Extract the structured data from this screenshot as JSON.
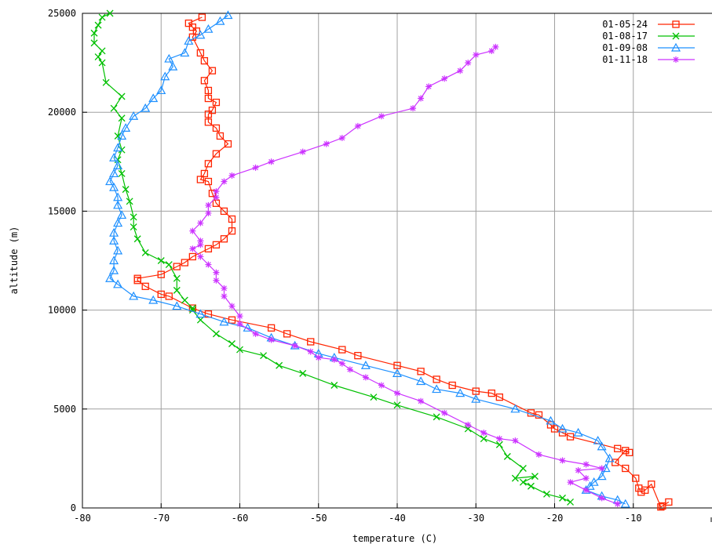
{
  "chart_data": {
    "type": "line",
    "title": "",
    "xlabel": "temperature (C)",
    "ylabel": "altitude (m)",
    "xlim": [
      -80,
      0
    ],
    "ylim": [
      0,
      25000
    ],
    "x_ticks": [
      "-80",
      "-70",
      "-60",
      "-50",
      "-40",
      "-30",
      "-20",
      "-10"
    ],
    "y_ticks": [
      "0",
      "5000",
      "10000",
      "15000",
      "20000",
      "25000"
    ],
    "grid": true,
    "legend_position": "top-right",
    "series": [
      {
        "name": "01-05-24",
        "color": "#ff2400",
        "marker": "square",
        "points": [
          [
            -5.5,
            300
          ],
          [
            -6.3,
            100
          ],
          [
            -6.5,
            50
          ],
          [
            -7.7,
            1200
          ],
          [
            -8.5,
            900
          ],
          [
            -9,
            800
          ],
          [
            -9.3,
            1000
          ],
          [
            -9.7,
            1500
          ],
          [
            -11,
            2000
          ],
          [
            -12.3,
            2300
          ],
          [
            -11,
            2900
          ],
          [
            -10.5,
            2800
          ],
          [
            -12,
            3000
          ],
          [
            -18,
            3600
          ],
          [
            -19,
            3800
          ],
          [
            -20,
            4000
          ],
          [
            -20.5,
            4200
          ],
          [
            -22,
            4700
          ],
          [
            -23,
            4800
          ],
          [
            -27,
            5600
          ],
          [
            -28,
            5800
          ],
          [
            -30,
            5900
          ],
          [
            -33,
            6200
          ],
          [
            -35,
            6500
          ],
          [
            -37,
            6900
          ],
          [
            -40,
            7200
          ],
          [
            -45,
            7700
          ],
          [
            -47,
            8000
          ],
          [
            -51,
            8400
          ],
          [
            -54,
            8800
          ],
          [
            -56,
            9100
          ],
          [
            -61,
            9500
          ],
          [
            -64,
            9800
          ],
          [
            -66,
            10100
          ],
          [
            -69,
            10700
          ],
          [
            -70,
            10800
          ],
          [
            -72,
            11200
          ],
          [
            -73,
            11500
          ],
          [
            -73,
            11600
          ],
          [
            -70,
            11800
          ],
          [
            -68,
            12200
          ],
          [
            -67,
            12400
          ],
          [
            -66,
            12700
          ],
          [
            -64,
            13100
          ],
          [
            -63,
            13300
          ],
          [
            -62,
            13600
          ],
          [
            -61,
            14000
          ],
          [
            -61,
            14600
          ],
          [
            -62,
            15000
          ],
          [
            -63,
            15400
          ],
          [
            -63.5,
            15900
          ],
          [
            -64,
            16500
          ],
          [
            -65,
            16600
          ],
          [
            -64.5,
            16900
          ],
          [
            -64,
            17400
          ],
          [
            -63,
            17900
          ],
          [
            -61.5,
            18400
          ],
          [
            -62.5,
            18800
          ],
          [
            -63,
            19200
          ],
          [
            -64,
            19500
          ],
          [
            -64,
            19900
          ],
          [
            -63.5,
            20100
          ],
          [
            -63,
            20500
          ],
          [
            -64,
            20700
          ],
          [
            -64,
            21100
          ],
          [
            -64.5,
            21600
          ],
          [
            -63.5,
            22100
          ],
          [
            -64.5,
            22600
          ],
          [
            -65,
            23000
          ],
          [
            -66,
            23800
          ],
          [
            -65.5,
            24100
          ],
          [
            -66,
            24300
          ],
          [
            -66.5,
            24500
          ],
          [
            -64.8,
            24800
          ]
        ]
      },
      {
        "name": "01-08-17",
        "color": "#00c000",
        "marker": "cross",
        "points": [
          [
            -18,
            300
          ],
          [
            -19,
            500
          ],
          [
            -21,
            700
          ],
          [
            -23,
            1100
          ],
          [
            -24,
            1300
          ],
          [
            -22.5,
            1600
          ],
          [
            -25,
            1500
          ],
          [
            -24,
            2000
          ],
          [
            -26,
            2600
          ],
          [
            -27,
            3200
          ],
          [
            -29,
            3500
          ],
          [
            -31,
            4000
          ],
          [
            -35,
            4600
          ],
          [
            -40,
            5200
          ],
          [
            -43,
            5600
          ],
          [
            -48,
            6200
          ],
          [
            -52,
            6800
          ],
          [
            -55,
            7200
          ],
          [
            -57,
            7700
          ],
          [
            -60,
            8000
          ],
          [
            -61,
            8300
          ],
          [
            -63,
            8800
          ],
          [
            -65,
            9500
          ],
          [
            -66,
            10000
          ],
          [
            -66,
            10100
          ],
          [
            -67,
            10500
          ],
          [
            -68,
            11000
          ],
          [
            -68,
            11600
          ],
          [
            -69,
            12300
          ],
          [
            -70,
            12500
          ],
          [
            -72,
            12900
          ],
          [
            -73,
            13600
          ],
          [
            -73.5,
            14200
          ],
          [
            -73.5,
            14700
          ],
          [
            -74,
            15500
          ],
          [
            -74.5,
            16100
          ],
          [
            -75,
            16900
          ],
          [
            -75.5,
            17600
          ],
          [
            -75,
            18100
          ],
          [
            -75.5,
            18800
          ],
          [
            -75,
            19700
          ],
          [
            -76,
            20200
          ],
          [
            -75,
            20800
          ],
          [
            -77,
            21500
          ],
          [
            -77.5,
            22500
          ],
          [
            -78,
            22800
          ],
          [
            -77.5,
            23100
          ],
          [
            -78.5,
            23500
          ],
          [
            -78.5,
            24000
          ],
          [
            -78,
            24400
          ],
          [
            -77.5,
            24800
          ],
          [
            -76.5,
            25000
          ]
        ]
      },
      {
        "name": "01-09-08",
        "color": "#1e90ff",
        "marker": "triangle",
        "points": [
          [
            -11,
            200
          ],
          [
            -12,
            400
          ],
          [
            -14,
            600
          ],
          [
            -16,
            900
          ],
          [
            -15.5,
            1100
          ],
          [
            -15,
            1300
          ],
          [
            -14,
            1600
          ],
          [
            -13.5,
            2000
          ],
          [
            -13,
            2500
          ],
          [
            -14,
            3100
          ],
          [
            -14.5,
            3400
          ],
          [
            -17,
            3800
          ],
          [
            -19,
            4000
          ],
          [
            -20.5,
            4400
          ],
          [
            -25,
            5000
          ],
          [
            -30,
            5500
          ],
          [
            -32,
            5800
          ],
          [
            -35,
            6000
          ],
          [
            -37,
            6400
          ],
          [
            -40,
            6800
          ],
          [
            -44,
            7200
          ],
          [
            -48,
            7600
          ],
          [
            -50,
            7800
          ],
          [
            -53,
            8200
          ],
          [
            -56,
            8600
          ],
          [
            -59,
            9100
          ],
          [
            -62,
            9400
          ],
          [
            -65,
            9800
          ],
          [
            -68,
            10200
          ],
          [
            -71,
            10500
          ],
          [
            -73.5,
            10700
          ],
          [
            -75.5,
            11300
          ],
          [
            -76.5,
            11600
          ],
          [
            -76,
            12000
          ],
          [
            -76,
            12500
          ],
          [
            -75.5,
            13000
          ],
          [
            -76,
            13500
          ],
          [
            -76,
            13900
          ],
          [
            -75.5,
            14400
          ],
          [
            -75,
            14800
          ],
          [
            -75.5,
            15300
          ],
          [
            -75.5,
            15700
          ],
          [
            -76,
            16200
          ],
          [
            -76.5,
            16500
          ],
          [
            -76,
            16900
          ],
          [
            -75.5,
            17300
          ],
          [
            -76,
            17700
          ],
          [
            -75.5,
            18200
          ],
          [
            -75,
            18800
          ],
          [
            -74.5,
            19200
          ],
          [
            -73.5,
            19800
          ],
          [
            -72,
            20200
          ],
          [
            -71,
            20700
          ],
          [
            -70,
            21100
          ],
          [
            -69.5,
            21800
          ],
          [
            -68.5,
            22300
          ],
          [
            -69,
            22700
          ],
          [
            -67,
            23000
          ],
          [
            -66.5,
            23600
          ],
          [
            -65,
            23900
          ],
          [
            -64,
            24200
          ],
          [
            -62.5,
            24600
          ],
          [
            -61.5,
            24900
          ]
        ]
      },
      {
        "name": "01-11-18",
        "color": "#cc33ff",
        "marker": "star",
        "points": [
          [
            -12,
            200
          ],
          [
            -14,
            500
          ],
          [
            -16,
            900
          ],
          [
            -18,
            1300
          ],
          [
            -16,
            1500
          ],
          [
            -17,
            1900
          ],
          [
            -14,
            2000
          ],
          [
            -16,
            2200
          ],
          [
            -19,
            2400
          ],
          [
            -22,
            2700
          ],
          [
            -25,
            3400
          ],
          [
            -27,
            3500
          ],
          [
            -29,
            3800
          ],
          [
            -31,
            4200
          ],
          [
            -34,
            4800
          ],
          [
            -37,
            5400
          ],
          [
            -40,
            5800
          ],
          [
            -42,
            6200
          ],
          [
            -44,
            6600
          ],
          [
            -46,
            7000
          ],
          [
            -47,
            7300
          ],
          [
            -48,
            7500
          ],
          [
            -50,
            7600
          ],
          [
            -51,
            7900
          ],
          [
            -53,
            8200
          ],
          [
            -56,
            8500
          ],
          [
            -58,
            8800
          ],
          [
            -60,
            9300
          ],
          [
            -60,
            9700
          ],
          [
            -61,
            10200
          ],
          [
            -62,
            10700
          ],
          [
            -62,
            11100
          ],
          [
            -63,
            11500
          ],
          [
            -63,
            11900
          ],
          [
            -64,
            12300
          ],
          [
            -65,
            12700
          ],
          [
            -66,
            13100
          ],
          [
            -65,
            13300
          ],
          [
            -65,
            13500
          ],
          [
            -66,
            14000
          ],
          [
            -65,
            14400
          ],
          [
            -64,
            14900
          ],
          [
            -64,
            15300
          ],
          [
            -63,
            15700
          ],
          [
            -63,
            16000
          ],
          [
            -62,
            16500
          ],
          [
            -61,
            16800
          ],
          [
            -58,
            17200
          ],
          [
            -56,
            17500
          ],
          [
            -52,
            18000
          ],
          [
            -49,
            18400
          ],
          [
            -47,
            18700
          ],
          [
            -45,
            19300
          ],
          [
            -42,
            19800
          ],
          [
            -38,
            20200
          ],
          [
            -37,
            20700
          ],
          [
            -36,
            21300
          ],
          [
            -34,
            21700
          ],
          [
            -32,
            22100
          ],
          [
            -31,
            22500
          ],
          [
            -30,
            22900
          ],
          [
            -28,
            23100
          ],
          [
            -27.5,
            23300
          ]
        ]
      }
    ]
  }
}
